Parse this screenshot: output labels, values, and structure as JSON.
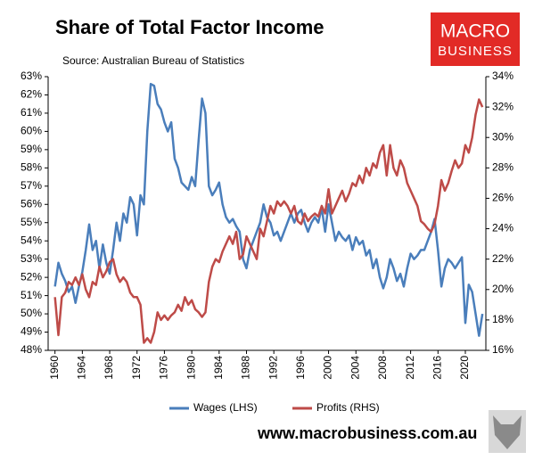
{
  "chart_data": {
    "type": "line",
    "title": "Share of Total Factor Income",
    "subtitle": "Source: Australian Bureau of Statistics",
    "logo": {
      "top": "MACRO",
      "bottom": "BUSINESS"
    },
    "footer": "www.macrobusiness.com.au",
    "x": [
      1960,
      1960.5,
      1961,
      1961.5,
      1962,
      1962.5,
      1963,
      1963.5,
      1964,
      1964.5,
      1965,
      1965.5,
      1966,
      1966.5,
      1967,
      1967.5,
      1968,
      1968.5,
      1969,
      1969.5,
      1970,
      1970.5,
      1971,
      1971.5,
      1972,
      1972.5,
      1973,
      1973.5,
      1974,
      1974.5,
      1975,
      1975.5,
      1976,
      1976.5,
      1977,
      1977.5,
      1978,
      1978.5,
      1979,
      1979.5,
      1980,
      1980.5,
      1981,
      1981.5,
      1982,
      1982.5,
      1983,
      1983.5,
      1984,
      1984.5,
      1985,
      1985.5,
      1986,
      1986.5,
      1987,
      1987.5,
      1988,
      1988.5,
      1989,
      1989.5,
      1990,
      1990.5,
      1991,
      1991.5,
      1992,
      1992.5,
      1993,
      1993.5,
      1994,
      1994.5,
      1995,
      1995.5,
      1996,
      1996.5,
      1997,
      1997.5,
      1998,
      1998.5,
      1999,
      1999.5,
      2000,
      2000.5,
      2001,
      2001.5,
      2002,
      2002.5,
      2003,
      2003.5,
      2004,
      2004.5,
      2005,
      2005.5,
      2006,
      2006.5,
      2007,
      2007.5,
      2008,
      2008.5,
      2009,
      2009.5,
      2010,
      2010.5,
      2011,
      2011.5,
      2012,
      2012.5,
      2013,
      2013.5,
      2014,
      2014.5,
      2015,
      2015.5,
      2016,
      2016.5,
      2017,
      2017.5,
      2018,
      2018.5,
      2019,
      2019.5,
      2020,
      2020.5,
      2021,
      2021.5,
      2022,
      2022.5
    ],
    "series": [
      {
        "name": "Wages (LHS)",
        "color": "#4a7ebb",
        "axis": "y",
        "values": [
          51.5,
          52.8,
          52.2,
          51.8,
          51.2,
          51.5,
          50.6,
          51.5,
          52.3,
          53.5,
          54.9,
          53.5,
          54.0,
          52.5,
          53.8,
          52.8,
          52.2,
          53.5,
          55.0,
          54.0,
          55.5,
          55.0,
          56.4,
          56.0,
          54.3,
          56.5,
          56.0,
          60.0,
          62.6,
          62.5,
          61.5,
          61.2,
          60.5,
          60.0,
          60.5,
          58.5,
          58.0,
          57.2,
          57.0,
          56.8,
          57.5,
          57.0,
          59.5,
          61.8,
          61.0,
          57.0,
          56.5,
          56.8,
          57.2,
          56.0,
          55.3,
          55.0,
          55.2,
          54.8,
          54.5,
          53.0,
          52.5,
          53.5,
          54.0,
          54.5,
          55.0,
          56.0,
          55.3,
          55.0,
          54.3,
          54.5,
          54.0,
          54.5,
          55.0,
          55.5,
          55.0,
          55.5,
          55.7,
          55.0,
          54.5,
          55.0,
          55.3,
          55.0,
          55.8,
          54.5,
          56.0,
          55.0,
          54.0,
          54.5,
          54.2,
          54.0,
          54.3,
          53.5,
          54.2,
          53.8,
          54.0,
          53.2,
          53.5,
          52.5,
          53.0,
          52.0,
          51.4,
          52.0,
          53.0,
          52.5,
          51.8,
          52.2,
          51.5,
          52.5,
          53.3,
          53.0,
          53.2,
          53.5,
          53.5,
          54.0,
          54.5,
          55.2,
          53.5,
          51.5,
          52.5,
          53.0,
          52.8,
          52.5,
          52.8,
          53.1,
          49.5,
          51.6,
          51.2,
          50.0,
          48.8,
          50.0
        ]
      },
      {
        "name": "Profits (RHS)",
        "color": "#be4b48",
        "axis": "y2",
        "values": [
          19.5,
          17.0,
          19.5,
          19.8,
          20.5,
          20.3,
          20.8,
          20.3,
          21.0,
          20.0,
          19.5,
          20.5,
          20.3,
          21.5,
          20.8,
          21.2,
          21.8,
          22.0,
          21.0,
          20.5,
          20.8,
          20.5,
          19.8,
          19.5,
          19.5,
          19.0,
          16.5,
          16.8,
          16.5,
          17.2,
          18.5,
          18.0,
          18.3,
          18.0,
          18.3,
          18.5,
          19.0,
          18.6,
          19.5,
          19.0,
          19.3,
          18.7,
          18.5,
          18.2,
          18.5,
          20.5,
          21.5,
          22.0,
          21.8,
          22.5,
          23.0,
          23.5,
          23.0,
          23.8,
          22.0,
          22.3,
          23.5,
          23.0,
          22.5,
          22.0,
          24.0,
          23.5,
          24.5,
          25.5,
          25.0,
          25.8,
          25.5,
          25.8,
          25.5,
          25.0,
          25.5,
          24.5,
          24.3,
          25.0,
          24.5,
          24.8,
          25.0,
          24.8,
          25.5,
          25.0,
          26.6,
          25.0,
          25.5,
          26.0,
          26.5,
          25.8,
          26.3,
          27.0,
          26.8,
          27.5,
          27.0,
          28.0,
          27.5,
          28.3,
          28.0,
          29.0,
          29.5,
          27.5,
          29.5,
          28.0,
          27.5,
          28.5,
          28.0,
          27.0,
          26.5,
          26.0,
          25.5,
          24.5,
          24.3,
          24.0,
          23.8,
          24.3,
          25.5,
          27.2,
          26.5,
          27.0,
          27.8,
          28.5,
          28.0,
          28.3,
          29.5,
          29.0,
          30.0,
          31.5,
          32.5,
          32.0
        ]
      }
    ],
    "xlim": [
      1959,
      2023
    ],
    "xticks": [
      1960,
      1964,
      1968,
      1972,
      1976,
      1980,
      1984,
      1988,
      1992,
      1996,
      2000,
      2004,
      2008,
      2012,
      2016,
      2020
    ],
    "ylim": [
      48,
      63
    ],
    "yticks": [
      {
        "value": 48,
        "label": "48%"
      },
      {
        "value": 49,
        "label": "49%"
      },
      {
        "value": 50,
        "label": "50%"
      },
      {
        "value": 51,
        "label": "51%"
      },
      {
        "value": 52,
        "label": "52%"
      },
      {
        "value": 53,
        "label": "53%"
      },
      {
        "value": 54,
        "label": "54%"
      },
      {
        "value": 55,
        "label": "55%"
      },
      {
        "value": 56,
        "label": "56%"
      },
      {
        "value": 57,
        "label": "57%"
      },
      {
        "value": 58,
        "label": "58%"
      },
      {
        "value": 59,
        "label": "59%"
      },
      {
        "value": 60,
        "label": "60%"
      },
      {
        "value": 61,
        "label": "61%"
      },
      {
        "value": 62,
        "label": "62%"
      },
      {
        "value": 63,
        "label": "63%"
      }
    ],
    "y2lim": [
      16,
      34
    ],
    "y2ticks": [
      {
        "value": 16,
        "label": "16%"
      },
      {
        "value": 18,
        "label": "18%"
      },
      {
        "value": 20,
        "label": "20%"
      },
      {
        "value": 22,
        "label": "22%"
      },
      {
        "value": 24,
        "label": "24%"
      },
      {
        "value": 26,
        "label": "26%"
      },
      {
        "value": 28,
        "label": "28%"
      },
      {
        "value": 30,
        "label": "30%"
      },
      {
        "value": 32,
        "label": "32%"
      },
      {
        "value": 34,
        "label": "34%"
      }
    ],
    "grid": false,
    "legend": "bottom"
  }
}
